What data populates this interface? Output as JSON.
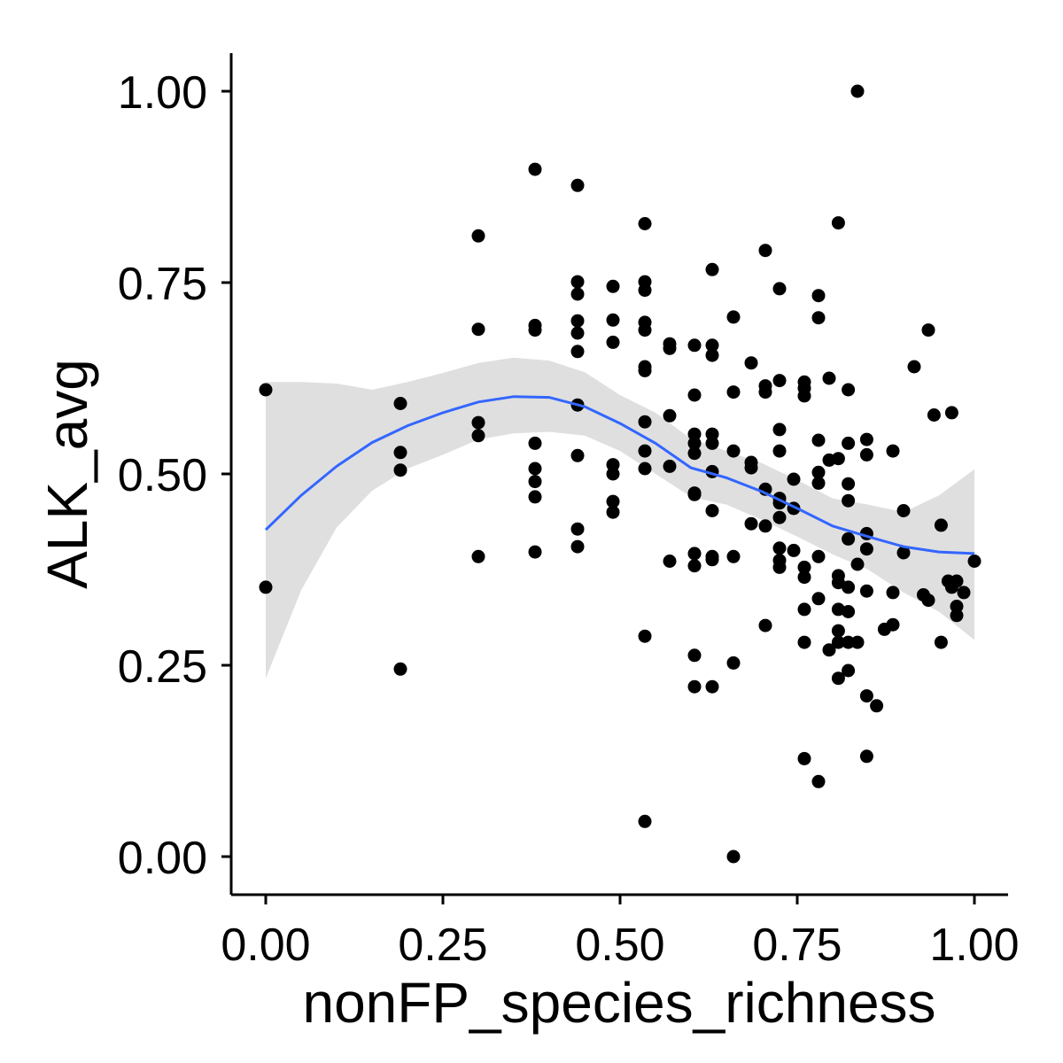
{
  "chart_data": {
    "type": "scatter",
    "xlabel": "nonFP_species_richness",
    "ylabel": "ALK_avg",
    "xlim": [
      -0.05,
      1.05
    ],
    "ylim": [
      -0.05,
      1.05
    ],
    "x_ticks": [
      {
        "value": 0.0,
        "label": "0.00"
      },
      {
        "value": 0.25,
        "label": "0.25"
      },
      {
        "value": 0.5,
        "label": "0.50"
      },
      {
        "value": 0.75,
        "label": "0.75"
      },
      {
        "value": 1.0,
        "label": "1.00"
      }
    ],
    "y_ticks": [
      {
        "value": 0.0,
        "label": "0.00"
      },
      {
        "value": 0.25,
        "label": "0.25"
      },
      {
        "value": 0.5,
        "label": "0.50"
      },
      {
        "value": 0.75,
        "label": "0.75"
      },
      {
        "value": 1.0,
        "label": "1.00"
      }
    ],
    "grid": false,
    "legend": "none",
    "colors": {
      "points": "#000000",
      "smooth_line": "#3366ff",
      "confidence_band": "#d9d9d9"
    },
    "points": [
      {
        "x": 0.0,
        "y": 0.61
      },
      {
        "x": 0.0,
        "y": 0.352
      },
      {
        "x": 0.19,
        "y": 0.592
      },
      {
        "x": 0.19,
        "y": 0.528
      },
      {
        "x": 0.19,
        "y": 0.505
      },
      {
        "x": 0.19,
        "y": 0.245
      },
      {
        "x": 0.3,
        "y": 0.811
      },
      {
        "x": 0.3,
        "y": 0.689
      },
      {
        "x": 0.3,
        "y": 0.567
      },
      {
        "x": 0.3,
        "y": 0.55
      },
      {
        "x": 0.3,
        "y": 0.392
      },
      {
        "x": 0.38,
        "y": 0.898
      },
      {
        "x": 0.38,
        "y": 0.694
      },
      {
        "x": 0.38,
        "y": 0.688
      },
      {
        "x": 0.38,
        "y": 0.54
      },
      {
        "x": 0.38,
        "y": 0.507
      },
      {
        "x": 0.38,
        "y": 0.49
      },
      {
        "x": 0.38,
        "y": 0.47
      },
      {
        "x": 0.38,
        "y": 0.398
      },
      {
        "x": 0.44,
        "y": 0.877
      },
      {
        "x": 0.44,
        "y": 0.751
      },
      {
        "x": 0.44,
        "y": 0.735
      },
      {
        "x": 0.44,
        "y": 0.7
      },
      {
        "x": 0.44,
        "y": 0.684
      },
      {
        "x": 0.44,
        "y": 0.66
      },
      {
        "x": 0.44,
        "y": 0.59
      },
      {
        "x": 0.44,
        "y": 0.524
      },
      {
        "x": 0.44,
        "y": 0.428
      },
      {
        "x": 0.44,
        "y": 0.405
      },
      {
        "x": 0.49,
        "y": 0.745
      },
      {
        "x": 0.49,
        "y": 0.701
      },
      {
        "x": 0.49,
        "y": 0.672
      },
      {
        "x": 0.49,
        "y": 0.512
      },
      {
        "x": 0.49,
        "y": 0.5
      },
      {
        "x": 0.49,
        "y": 0.464
      },
      {
        "x": 0.49,
        "y": 0.45
      },
      {
        "x": 0.535,
        "y": 0.827
      },
      {
        "x": 0.535,
        "y": 0.751
      },
      {
        "x": 0.535,
        "y": 0.74
      },
      {
        "x": 0.535,
        "y": 0.698
      },
      {
        "x": 0.535,
        "y": 0.688
      },
      {
        "x": 0.535,
        "y": 0.64
      },
      {
        "x": 0.535,
        "y": 0.635
      },
      {
        "x": 0.535,
        "y": 0.568
      },
      {
        "x": 0.535,
        "y": 0.53
      },
      {
        "x": 0.535,
        "y": 0.507
      },
      {
        "x": 0.535,
        "y": 0.288
      },
      {
        "x": 0.535,
        "y": 0.046
      },
      {
        "x": 0.57,
        "y": 0.67
      },
      {
        "x": 0.57,
        "y": 0.664
      },
      {
        "x": 0.57,
        "y": 0.576
      },
      {
        "x": 0.57,
        "y": 0.51
      },
      {
        "x": 0.57,
        "y": 0.386
      },
      {
        "x": 0.605,
        "y": 0.668
      },
      {
        "x": 0.605,
        "y": 0.603
      },
      {
        "x": 0.605,
        "y": 0.552
      },
      {
        "x": 0.605,
        "y": 0.54
      },
      {
        "x": 0.605,
        "y": 0.527
      },
      {
        "x": 0.605,
        "y": 0.475
      },
      {
        "x": 0.605,
        "y": 0.473
      },
      {
        "x": 0.605,
        "y": 0.396
      },
      {
        "x": 0.605,
        "y": 0.38
      },
      {
        "x": 0.605,
        "y": 0.263
      },
      {
        "x": 0.605,
        "y": 0.222
      },
      {
        "x": 0.63,
        "y": 0.767
      },
      {
        "x": 0.63,
        "y": 0.668
      },
      {
        "x": 0.63,
        "y": 0.655
      },
      {
        "x": 0.63,
        "y": 0.552
      },
      {
        "x": 0.63,
        "y": 0.54
      },
      {
        "x": 0.63,
        "y": 0.503
      },
      {
        "x": 0.63,
        "y": 0.452
      },
      {
        "x": 0.63,
        "y": 0.392
      },
      {
        "x": 0.63,
        "y": 0.388
      },
      {
        "x": 0.63,
        "y": 0.222
      },
      {
        "x": 0.66,
        "y": 0.705
      },
      {
        "x": 0.66,
        "y": 0.607
      },
      {
        "x": 0.66,
        "y": 0.53
      },
      {
        "x": 0.66,
        "y": 0.392
      },
      {
        "x": 0.66,
        "y": 0.253
      },
      {
        "x": 0.66,
        "y": 0.0
      },
      {
        "x": 0.685,
        "y": 0.645
      },
      {
        "x": 0.685,
        "y": 0.515
      },
      {
        "x": 0.685,
        "y": 0.508
      },
      {
        "x": 0.685,
        "y": 0.435
      },
      {
        "x": 0.705,
        "y": 0.792
      },
      {
        "x": 0.705,
        "y": 0.615
      },
      {
        "x": 0.705,
        "y": 0.607
      },
      {
        "x": 0.705,
        "y": 0.48
      },
      {
        "x": 0.705,
        "y": 0.432
      },
      {
        "x": 0.705,
        "y": 0.302
      },
      {
        "x": 0.725,
        "y": 0.742
      },
      {
        "x": 0.725,
        "y": 0.622
      },
      {
        "x": 0.725,
        "y": 0.558
      },
      {
        "x": 0.725,
        "y": 0.53
      },
      {
        "x": 0.725,
        "y": 0.468
      },
      {
        "x": 0.725,
        "y": 0.462
      },
      {
        "x": 0.725,
        "y": 0.443
      },
      {
        "x": 0.725,
        "y": 0.403
      },
      {
        "x": 0.725,
        "y": 0.387
      },
      {
        "x": 0.725,
        "y": 0.378
      },
      {
        "x": 0.745,
        "y": 0.493
      },
      {
        "x": 0.745,
        "y": 0.455
      },
      {
        "x": 0.745,
        "y": 0.4
      },
      {
        "x": 0.76,
        "y": 0.62
      },
      {
        "x": 0.76,
        "y": 0.612
      },
      {
        "x": 0.76,
        "y": 0.602
      },
      {
        "x": 0.76,
        "y": 0.378
      },
      {
        "x": 0.76,
        "y": 0.365
      },
      {
        "x": 0.76,
        "y": 0.323
      },
      {
        "x": 0.76,
        "y": 0.28
      },
      {
        "x": 0.76,
        "y": 0.128
      },
      {
        "x": 0.78,
        "y": 0.733
      },
      {
        "x": 0.78,
        "y": 0.704
      },
      {
        "x": 0.78,
        "y": 0.544
      },
      {
        "x": 0.78,
        "y": 0.502
      },
      {
        "x": 0.78,
        "y": 0.488
      },
      {
        "x": 0.78,
        "y": 0.392
      },
      {
        "x": 0.78,
        "y": 0.337
      },
      {
        "x": 0.78,
        "y": 0.098
      },
      {
        "x": 0.795,
        "y": 0.625
      },
      {
        "x": 0.795,
        "y": 0.518
      },
      {
        "x": 0.795,
        "y": 0.27
      },
      {
        "x": 0.808,
        "y": 0.828
      },
      {
        "x": 0.808,
        "y": 0.52
      },
      {
        "x": 0.808,
        "y": 0.367
      },
      {
        "x": 0.808,
        "y": 0.358
      },
      {
        "x": 0.808,
        "y": 0.323
      },
      {
        "x": 0.808,
        "y": 0.295
      },
      {
        "x": 0.808,
        "y": 0.28
      },
      {
        "x": 0.808,
        "y": 0.233
      },
      {
        "x": 0.822,
        "y": 0.61
      },
      {
        "x": 0.822,
        "y": 0.54
      },
      {
        "x": 0.822,
        "y": 0.487
      },
      {
        "x": 0.822,
        "y": 0.465
      },
      {
        "x": 0.822,
        "y": 0.415
      },
      {
        "x": 0.822,
        "y": 0.352
      },
      {
        "x": 0.822,
        "y": 0.32
      },
      {
        "x": 0.822,
        "y": 0.28
      },
      {
        "x": 0.822,
        "y": 0.243
      },
      {
        "x": 0.835,
        "y": 1.0
      },
      {
        "x": 0.835,
        "y": 0.382
      },
      {
        "x": 0.835,
        "y": 0.28
      },
      {
        "x": 0.848,
        "y": 0.545
      },
      {
        "x": 0.848,
        "y": 0.525
      },
      {
        "x": 0.848,
        "y": 0.422
      },
      {
        "x": 0.848,
        "y": 0.402
      },
      {
        "x": 0.848,
        "y": 0.347
      },
      {
        "x": 0.848,
        "y": 0.21
      },
      {
        "x": 0.848,
        "y": 0.131
      },
      {
        "x": 0.862,
        "y": 0.197
      },
      {
        "x": 0.873,
        "y": 0.297
      },
      {
        "x": 0.885,
        "y": 0.53
      },
      {
        "x": 0.885,
        "y": 0.345
      },
      {
        "x": 0.885,
        "y": 0.303
      },
      {
        "x": 0.9,
        "y": 0.452
      },
      {
        "x": 0.9,
        "y": 0.397
      },
      {
        "x": 0.915,
        "y": 0.64
      },
      {
        "x": 0.928,
        "y": 0.342
      },
      {
        "x": 0.935,
        "y": 0.688
      },
      {
        "x": 0.935,
        "y": 0.335
      },
      {
        "x": 0.943,
        "y": 0.577
      },
      {
        "x": 0.953,
        "y": 0.433
      },
      {
        "x": 0.953,
        "y": 0.28
      },
      {
        "x": 0.963,
        "y": 0.36
      },
      {
        "x": 0.968,
        "y": 0.58
      },
      {
        "x": 0.968,
        "y": 0.352
      },
      {
        "x": 0.975,
        "y": 0.36
      },
      {
        "x": 0.975,
        "y": 0.327
      },
      {
        "x": 0.975,
        "y": 0.315
      },
      {
        "x": 0.985,
        "y": 0.345
      },
      {
        "x": 1.0,
        "y": 0.386
      }
    ],
    "smooth": {
      "method": "loess",
      "x": [
        0.0,
        0.05,
        0.1,
        0.15,
        0.2,
        0.25,
        0.3,
        0.35,
        0.4,
        0.45,
        0.5,
        0.55,
        0.6,
        0.65,
        0.7,
        0.75,
        0.8,
        0.85,
        0.9,
        0.95,
        1.0
      ],
      "y": [
        0.427,
        0.472,
        0.51,
        0.541,
        0.563,
        0.58,
        0.594,
        0.601,
        0.6,
        0.588,
        0.566,
        0.54,
        0.508,
        0.495,
        0.477,
        0.455,
        0.432,
        0.418,
        0.405,
        0.398,
        0.396
      ],
      "ymin": [
        0.233,
        0.348,
        0.43,
        0.478,
        0.507,
        0.525,
        0.545,
        0.553,
        0.555,
        0.55,
        0.53,
        0.5,
        0.47,
        0.46,
        0.44,
        0.418,
        0.395,
        0.375,
        0.345,
        0.32,
        0.283
      ],
      "ymax": [
        0.62,
        0.62,
        0.618,
        0.61,
        0.62,
        0.632,
        0.645,
        0.652,
        0.648,
        0.633,
        0.603,
        0.58,
        0.546,
        0.53,
        0.514,
        0.492,
        0.468,
        0.46,
        0.45,
        0.472,
        0.506
      ]
    }
  }
}
